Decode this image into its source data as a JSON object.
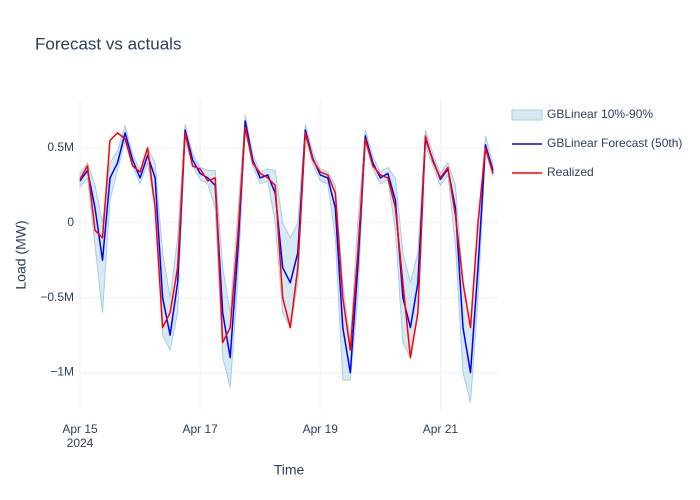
{
  "chart_data": {
    "type": "line",
    "title": "Forecast vs actuals",
    "xlabel": "Time",
    "ylabel": "Load (MW)",
    "x": [
      "2024-04-15 00:00",
      "2024-04-15 03:00",
      "2024-04-15 06:00",
      "2024-04-15 09:00",
      "2024-04-15 12:00",
      "2024-04-15 15:00",
      "2024-04-15 18:00",
      "2024-04-15 21:00",
      "2024-04-16 00:00",
      "2024-04-16 03:00",
      "2024-04-16 06:00",
      "2024-04-16 09:00",
      "2024-04-16 12:00",
      "2024-04-16 15:00",
      "2024-04-16 18:00",
      "2024-04-16 21:00",
      "2024-04-17 00:00",
      "2024-04-17 03:00",
      "2024-04-17 06:00",
      "2024-04-17 09:00",
      "2024-04-17 12:00",
      "2024-04-17 15:00",
      "2024-04-17 18:00",
      "2024-04-17 21:00",
      "2024-04-18 00:00",
      "2024-04-18 03:00",
      "2024-04-18 06:00",
      "2024-04-18 09:00",
      "2024-04-18 12:00",
      "2024-04-18 15:00",
      "2024-04-18 18:00",
      "2024-04-18 21:00",
      "2024-04-19 00:00",
      "2024-04-19 03:00",
      "2024-04-19 06:00",
      "2024-04-19 09:00",
      "2024-04-19 12:00",
      "2024-04-19 15:00",
      "2024-04-19 18:00",
      "2024-04-19 21:00",
      "2024-04-20 00:00",
      "2024-04-20 03:00",
      "2024-04-20 06:00",
      "2024-04-20 09:00",
      "2024-04-20 12:00",
      "2024-04-20 15:00",
      "2024-04-20 18:00",
      "2024-04-20 21:00",
      "2024-04-21 00:00",
      "2024-04-21 03:00",
      "2024-04-21 06:00",
      "2024-04-21 09:00",
      "2024-04-21 12:00",
      "2024-04-21 15:00",
      "2024-04-21 18:00",
      "2024-04-21 21:00"
    ],
    "xlim": [
      "2024-04-15 00:00",
      "2024-04-21 23:00"
    ],
    "xticks": [
      {
        "value": "2024-04-15 00:00",
        "label": "Apr 15\n2024"
      },
      {
        "value": "2024-04-17 00:00",
        "label": "Apr 17"
      },
      {
        "value": "2024-04-19 00:00",
        "label": "Apr 19"
      },
      {
        "value": "2024-04-21 00:00",
        "label": "Apr 21"
      }
    ],
    "ylim": [
      -1250000,
      820000
    ],
    "yticks": [
      {
        "value": -1000000,
        "label": "−1M"
      },
      {
        "value": -500000,
        "label": "−0.5M"
      },
      0,
      {
        "value": 500000,
        "label": "0.5M"
      }
    ],
    "grid": true,
    "legend": "right",
    "series": [
      {
        "name": "GBLinear 10%-90%",
        "kind": "band",
        "color": "#a6cee3",
        "lower": [
          240000,
          300000,
          -150000,
          -600000,
          150000,
          350000,
          550000,
          380000,
          260000,
          400000,
          100000,
          -750000,
          -850000,
          -600000,
          580000,
          380000,
          290000,
          260000,
          100000,
          -900000,
          -1100000,
          -400000,
          620000,
          380000,
          260000,
          280000,
          0,
          -600000,
          -700000,
          -400000,
          580000,
          390000,
          280000,
          260000,
          -100000,
          -1050000,
          -1050000,
          -500000,
          540000,
          360000,
          260000,
          290000,
          -50000,
          -800000,
          -900000,
          -600000,
          520000,
          380000,
          250000,
          320000,
          -150000,
          -1000000,
          -1200000,
          -500000,
          480000,
          310000
        ],
        "upper": [
          330000,
          400000,
          250000,
          0,
          400000,
          480000,
          650000,
          460000,
          350000,
          500000,
          400000,
          -200000,
          -500000,
          -100000,
          660000,
          460000,
          370000,
          350000,
          350000,
          -300000,
          -600000,
          50000,
          720000,
          460000,
          340000,
          360000,
          350000,
          0,
          -100000,
          0,
          660000,
          470000,
          360000,
          340000,
          250000,
          -400000,
          -800000,
          0,
          620000,
          440000,
          340000,
          370000,
          300000,
          -200000,
          -400000,
          -200000,
          620000,
          460000,
          330000,
          400000,
          250000,
          -400000,
          -700000,
          0,
          580000,
          390000
        ]
      },
      {
        "name": "GBLinear Forecast (50th)",
        "color": "#0000ff",
        "values": [
          280000,
          350000,
          100000,
          -250000,
          300000,
          400000,
          600000,
          420000,
          300000,
          450000,
          300000,
          -500000,
          -750000,
          -400000,
          620000,
          420000,
          330000,
          300000,
          250000,
          -600000,
          -900000,
          -200000,
          680000,
          420000,
          300000,
          320000,
          200000,
          -300000,
          -400000,
          -200000,
          620000,
          430000,
          320000,
          300000,
          100000,
          -700000,
          -1000000,
          -300000,
          580000,
          400000,
          300000,
          330000,
          150000,
          -500000,
          -700000,
          -400000,
          560000,
          420000,
          290000,
          360000,
          100000,
          -700000,
          -1000000,
          -300000,
          520000,
          350000
        ]
      },
      {
        "name": "Realized",
        "color": "#ff0000",
        "values": [
          290000,
          380000,
          -50000,
          -100000,
          550000,
          600000,
          560000,
          380000,
          340000,
          500000,
          100000,
          -700000,
          -600000,
          -300000,
          600000,
          380000,
          360000,
          280000,
          300000,
          -800000,
          -700000,
          -100000,
          640000,
          400000,
          330000,
          300000,
          250000,
          -500000,
          -700000,
          -300000,
          600000,
          420000,
          340000,
          320000,
          200000,
          -500000,
          -850000,
          -200000,
          560000,
          380000,
          320000,
          300000,
          100000,
          -400000,
          -900000,
          -600000,
          580000,
          410000,
          300000,
          370000,
          50000,
          -400000,
          -700000,
          0,
          500000,
          330000
        ]
      }
    ]
  }
}
